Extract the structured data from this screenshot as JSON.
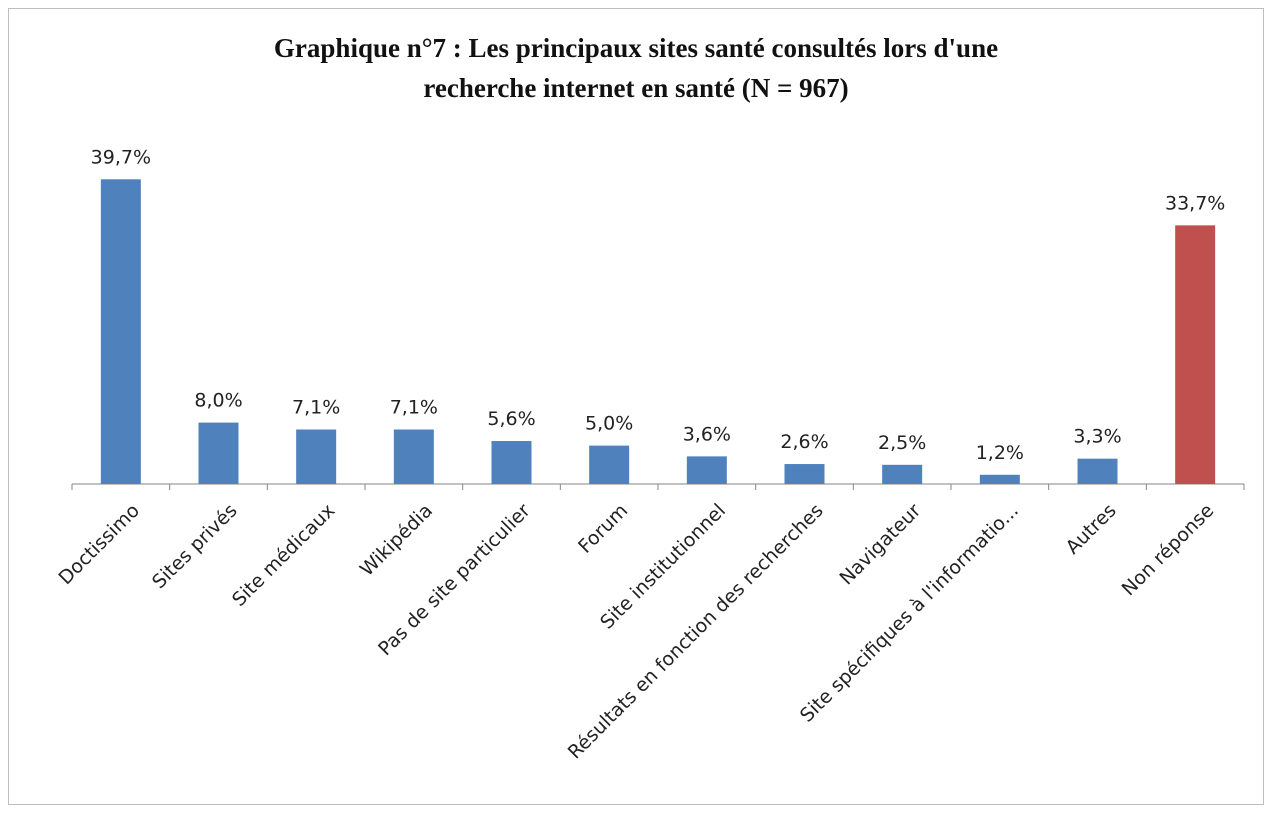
{
  "chart_data": {
    "type": "bar",
    "title_lines": [
      "Graphique n°7 : Les principaux sites santé consultés lors d'une",
      "recherche internet en santé (N = 967)"
    ],
    "categories": [
      "Doctissimo",
      "Sites privés",
      "Site médicaux",
      "Wikipédia",
      "Pas de site particulier",
      "Forum",
      "Site institutionnel",
      "Résultats en fonction des recherches",
      "Navigateur",
      "Site spécifiques à l'informatio...",
      "Autres",
      "Non réponse"
    ],
    "values": [
      39.7,
      8.0,
      7.1,
      7.1,
      5.6,
      5.0,
      3.6,
      2.6,
      2.5,
      1.2,
      3.3,
      33.7
    ],
    "value_labels": [
      "39,7%",
      "8,0%",
      "7,1%",
      "7,1%",
      "5,6%",
      "5,0%",
      "3,6%",
      "2,6%",
      "2,5%",
      "1,2%",
      "3,3%",
      "33,7%"
    ],
    "bar_colors": [
      "#4f81bd",
      "#4f81bd",
      "#4f81bd",
      "#4f81bd",
      "#4f81bd",
      "#4f81bd",
      "#4f81bd",
      "#4f81bd",
      "#4f81bd",
      "#4f81bd",
      "#4f81bd",
      "#c0504d"
    ],
    "ylim": [
      0,
      40
    ],
    "grid": false,
    "legend": "none",
    "xlabel": "",
    "ylabel": ""
  }
}
